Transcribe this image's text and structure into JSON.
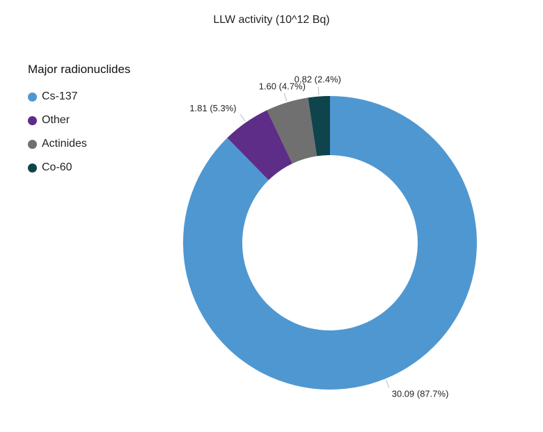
{
  "chart_data": {
    "type": "pie",
    "donut": true,
    "title": "LLW activity (10^12 Bq)",
    "legend_title": "Major radionuclides",
    "legend_position": "left",
    "categories": [
      "Cs-137",
      "Other",
      "Actinides",
      "Co-60"
    ],
    "values": [
      30.09,
      1.81,
      1.6,
      0.82
    ],
    "labels": [
      "30.09 (87.7%)",
      "1.81 (5.3%)",
      "1.60 (4.7%)",
      "0.82 (2.4%)"
    ],
    "colors": [
      "#4f97d1",
      "#5e2d87",
      "#707070",
      "#10444c"
    ]
  }
}
